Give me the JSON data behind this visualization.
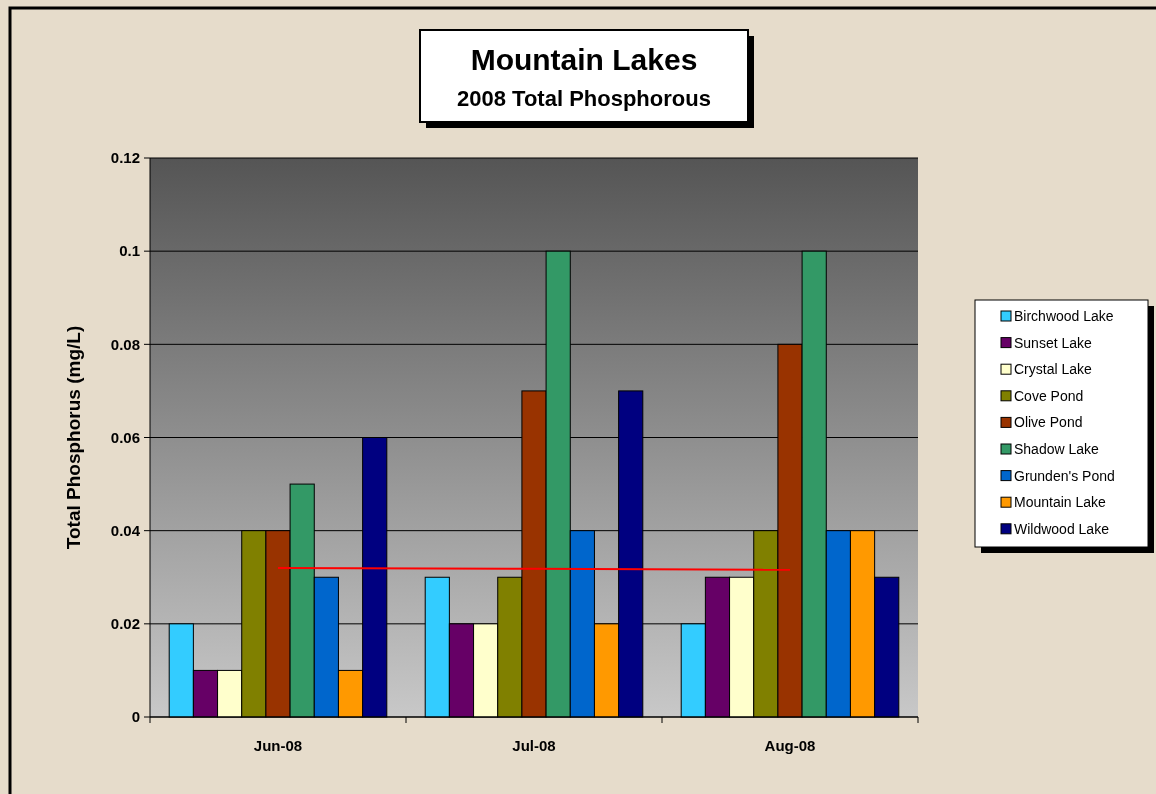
{
  "chart_data": {
    "type": "bar",
    "title": "Mountain Lakes",
    "subtitle": "2008 Total Phosphorous",
    "ylabel": "Total Phosphorus (mg/L)",
    "categories": [
      "Jun-08",
      "Jul-08",
      "Aug-08"
    ],
    "series": [
      {
        "name": "Birchwood Lake",
        "color": "#33ccff",
        "values": [
          0.02,
          0.03,
          0.02
        ]
      },
      {
        "name": "Sunset Lake",
        "color": "#660066",
        "values": [
          0.01,
          0.02,
          0.03
        ]
      },
      {
        "name": "Crystal Lake",
        "color": "#ffffcc",
        "values": [
          0.01,
          0.02,
          0.03
        ]
      },
      {
        "name": "Cove Pond",
        "color": "#808000",
        "values": [
          0.04,
          0.03,
          0.04
        ]
      },
      {
        "name": "Olive Pond",
        "color": "#993300",
        "values": [
          0.04,
          0.07,
          0.08
        ]
      },
      {
        "name": "Shadow Lake",
        "color": "#339966",
        "values": [
          0.05,
          0.1,
          0.1
        ]
      },
      {
        "name": "Grunden's Pond",
        "color": "#0066cc",
        "values": [
          0.03,
          0.04,
          0.04
        ]
      },
      {
        "name": "Mountain Lake",
        "color": "#ff9900",
        "values": [
          0.01,
          0.02,
          0.04
        ]
      },
      {
        "name": "Wildwood Lake",
        "color": "#000080",
        "values": [
          0.06,
          0.07,
          0.03
        ]
      },
      {
        "type": "line",
        "color": "#ff0000",
        "values": [
          0.032,
          0.0318,
          0.0316
        ]
      }
    ],
    "ylim": [
      0,
      0.12
    ],
    "yticks": [
      0,
      0.02,
      0.04,
      0.06,
      0.08,
      0.1,
      0.12
    ],
    "grid": "y",
    "legend": "right"
  }
}
